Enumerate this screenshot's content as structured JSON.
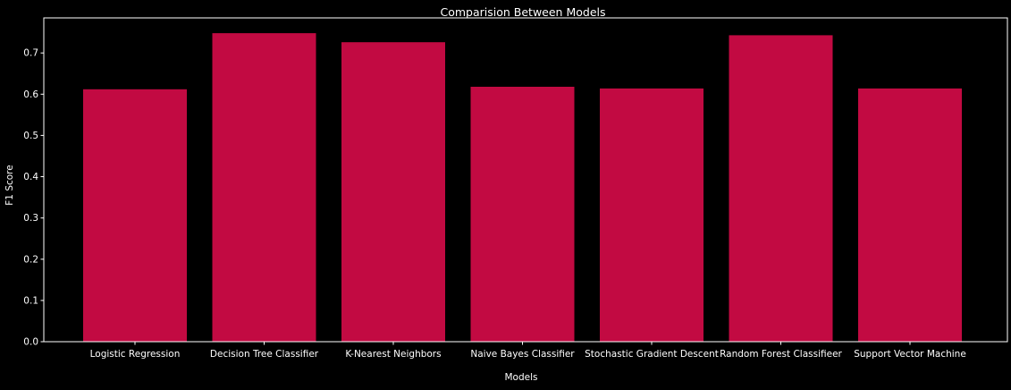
{
  "chart_data": {
    "type": "bar",
    "title": "Comparision Between Models",
    "xlabel": "Models",
    "ylabel": "F1 Score",
    "categories": [
      "Logistic Regression",
      "Decision Tree Classifier",
      "K-Nearest Neighbors",
      "Naive Bayes Classifier",
      "Stochastic Gradient Descent",
      "Random Forest Classifieer",
      "Support Vector Machine"
    ],
    "values": [
      0.612,
      0.748,
      0.726,
      0.618,
      0.614,
      0.743,
      0.614
    ],
    "ylim": [
      0,
      0.785
    ],
    "yticks": [
      0.0,
      0.1,
      0.2,
      0.3,
      0.4,
      0.5,
      0.6,
      0.7
    ],
    "ytick_labels": [
      "0.0",
      "0.1",
      "0.2",
      "0.3",
      "0.4",
      "0.5",
      "0.6",
      "0.7"
    ],
    "grid": false,
    "colors": {
      "bar": "#c20a42",
      "background": "#000000",
      "axes": "#ffffff",
      "text": "#ffffff"
    }
  }
}
